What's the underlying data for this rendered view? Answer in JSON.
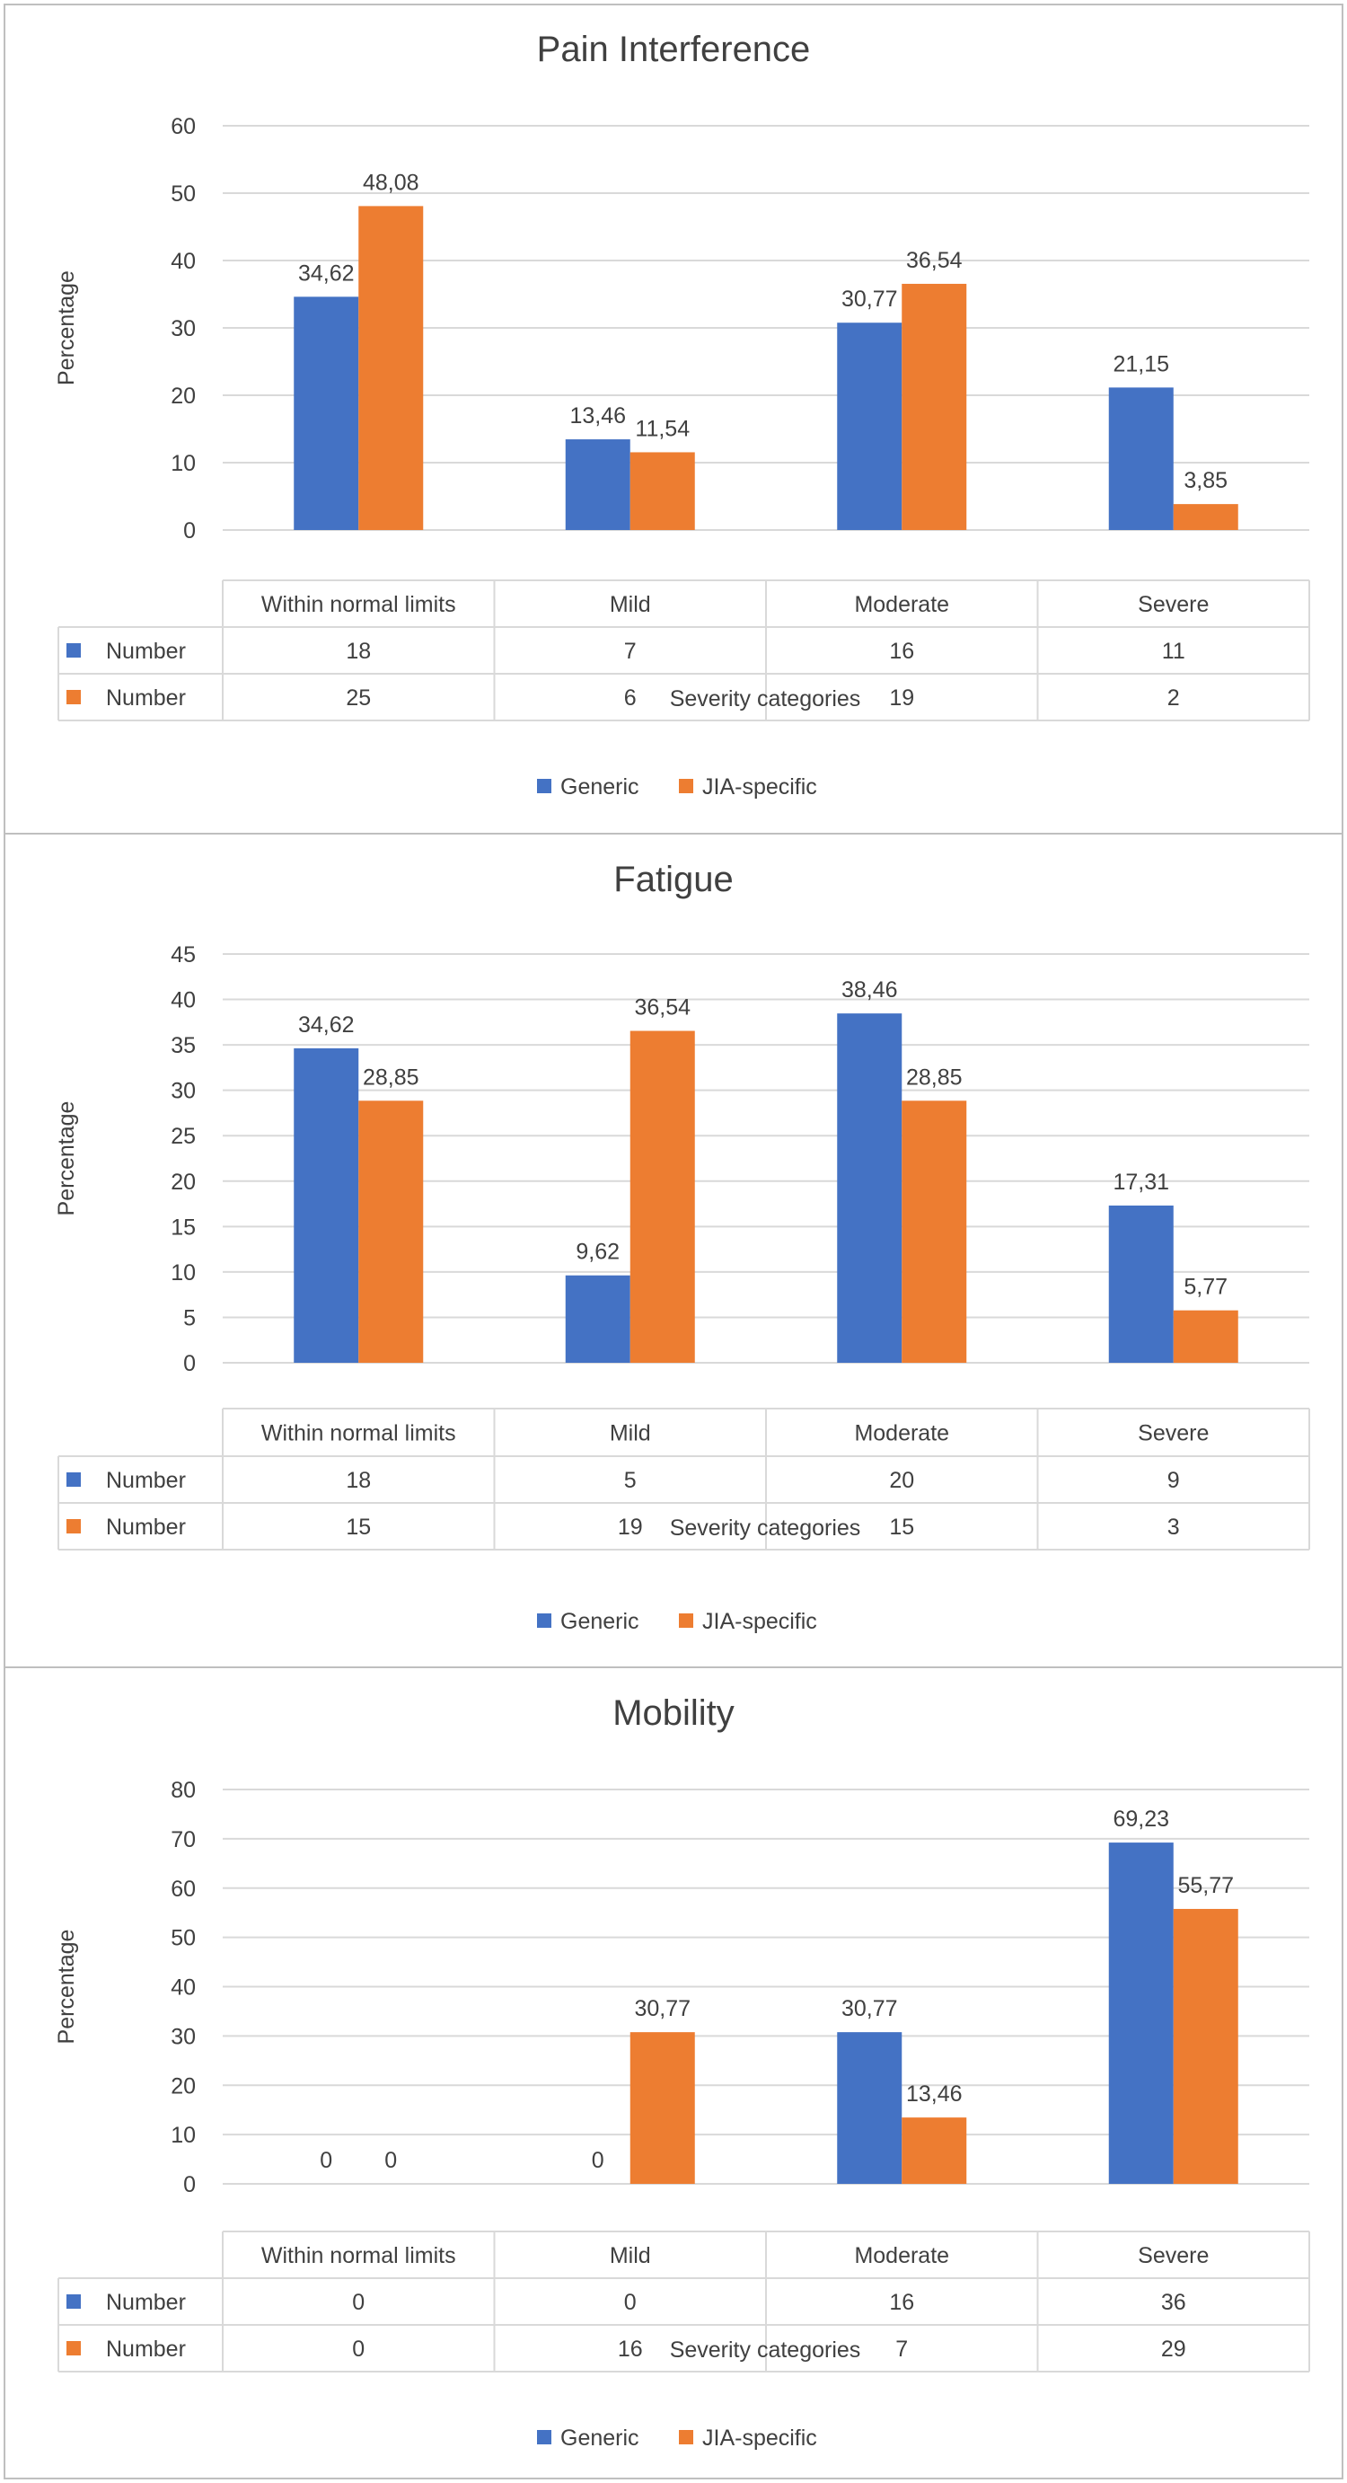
{
  "legend": {
    "generic": "Generic",
    "jia": "JIA-specific"
  },
  "colors": {
    "generic": "#4472C4",
    "jia": "#ED7D31",
    "grid": "#D9D9D9",
    "text": "#404040",
    "border": "#BFBFBF"
  },
  "chart_data": [
    {
      "type": "bar",
      "title": "Pain Interference",
      "xlabel": "Severity categories",
      "ylabel": "Percentage",
      "categories": [
        "Within normal limits",
        "Mild",
        "Moderate",
        "Severe"
      ],
      "ylim": [
        0,
        60
      ],
      "yticks": [
        "0",
        "10",
        "20",
        "30",
        "40",
        "50",
        "60"
      ],
      "grid": true,
      "legend_position": "bottom",
      "series": [
        {
          "name": "Generic",
          "values": [
            34.62,
            13.46,
            30.77,
            21.15
          ],
          "labels": [
            "34,62",
            "13,46",
            "30,77",
            "21,15"
          ]
        },
        {
          "name": "JIA-specific",
          "values": [
            48.08,
            11.54,
            36.54,
            3.85
          ],
          "labels": [
            "48,08",
            "11,54",
            "36,54",
            "3,85"
          ]
        }
      ],
      "table": [
        {
          "label": "Number",
          "values": [
            "18",
            "7",
            "16",
            "11"
          ]
        },
        {
          "label": "Number",
          "values": [
            "25",
            "6",
            "19",
            "2"
          ]
        }
      ]
    },
    {
      "type": "bar",
      "title": "Fatigue",
      "xlabel": "Severity categories",
      "ylabel": "Percentage",
      "categories": [
        "Within normal limits",
        "Mild",
        "Moderate",
        "Severe"
      ],
      "ylim": [
        0,
        45
      ],
      "yticks": [
        "0",
        "5",
        "10",
        "15",
        "20",
        "25",
        "30",
        "35",
        "40",
        "45"
      ],
      "grid": true,
      "legend_position": "bottom",
      "series": [
        {
          "name": "Generic",
          "values": [
            34.62,
            9.62,
            38.46,
            17.31
          ],
          "labels": [
            "34,62",
            "9,62",
            "38,46",
            "17,31"
          ]
        },
        {
          "name": "JIA-specific",
          "values": [
            28.85,
            36.54,
            28.85,
            5.77
          ],
          "labels": [
            "28,85",
            "36,54",
            "28,85",
            "5,77"
          ]
        }
      ],
      "table": [
        {
          "label": "Number",
          "values": [
            "18",
            "5",
            "20",
            "9"
          ]
        },
        {
          "label": "Number",
          "values": [
            "15",
            "19",
            "15",
            "3"
          ]
        }
      ]
    },
    {
      "type": "bar",
      "title": "Mobility",
      "xlabel": "Severity categories",
      "ylabel": "Percentage",
      "categories": [
        "Within normal limits",
        "Mild",
        "Moderate",
        "Severe"
      ],
      "ylim": [
        0,
        80
      ],
      "yticks": [
        "0",
        "10",
        "20",
        "30",
        "40",
        "50",
        "60",
        "70",
        "80"
      ],
      "grid": true,
      "legend_position": "bottom",
      "series": [
        {
          "name": "Generic",
          "values": [
            0,
            0,
            30.77,
            69.23
          ],
          "labels": [
            "0",
            "0",
            "30,77",
            "69,23"
          ]
        },
        {
          "name": "JIA-specific",
          "values": [
            0,
            30.77,
            13.46,
            55.77
          ],
          "labels": [
            "0",
            "30,77",
            "13,46",
            "55,77"
          ]
        }
      ],
      "table": [
        {
          "label": "Number",
          "values": [
            "0",
            "0",
            "16",
            "36"
          ]
        },
        {
          "label": "Number",
          "values": [
            "0",
            "16",
            "7",
            "29"
          ]
        }
      ]
    }
  ]
}
